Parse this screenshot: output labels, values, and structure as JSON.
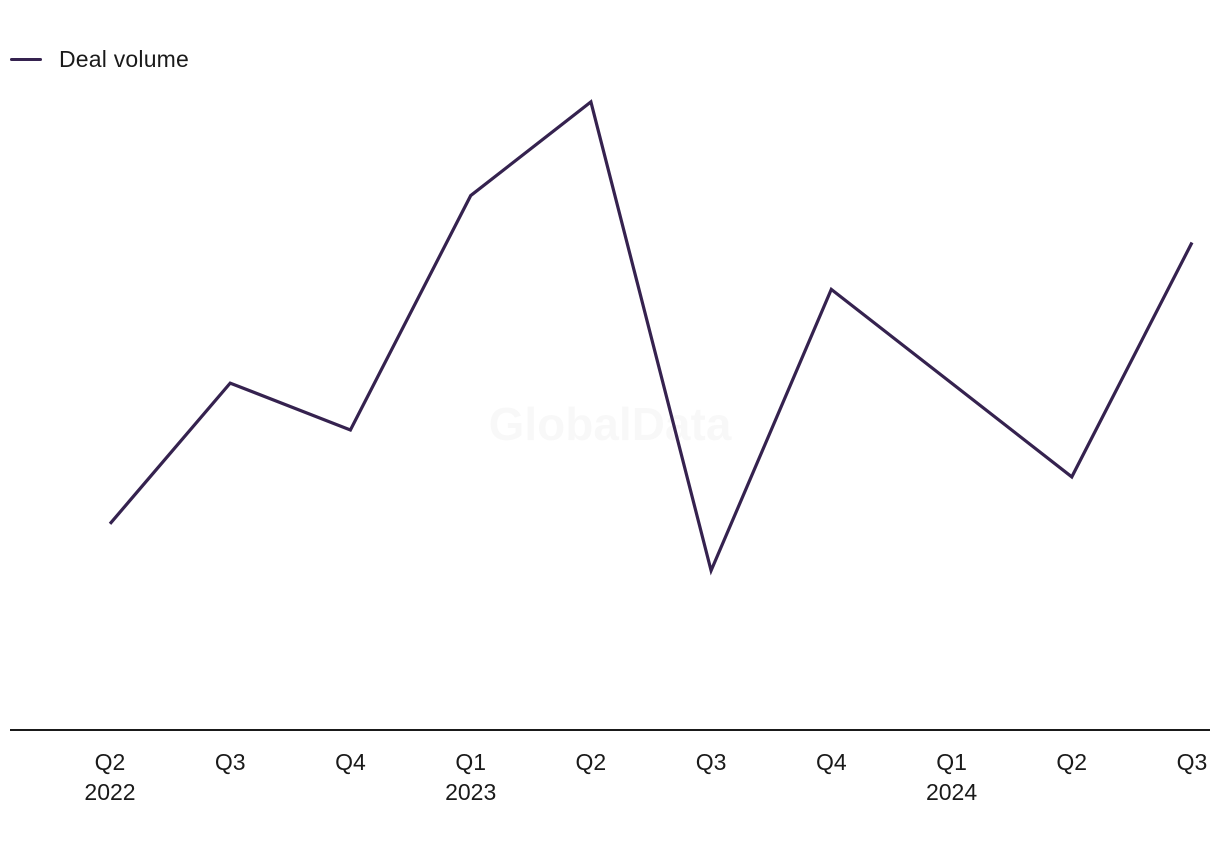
{
  "legend": {
    "label": "Deal volume"
  },
  "watermark": "GlobalData",
  "colors": {
    "series": "#35224f",
    "axis": "#1a1a1a"
  },
  "chart_data": {
    "type": "line",
    "title": "",
    "xlabel": "",
    "ylabel": "",
    "categories": [
      "Q2 2022",
      "Q3 2022",
      "Q4 2022",
      "Q1 2023",
      "Q2 2023",
      "Q3 2023",
      "Q4 2023",
      "Q1 2024",
      "Q2 2024",
      "Q3 2024"
    ],
    "x_tick_labels": [
      {
        "quarter": "Q2",
        "year": "2022"
      },
      {
        "quarter": "Q3",
        "year": ""
      },
      {
        "quarter": "Q4",
        "year": ""
      },
      {
        "quarter": "Q1",
        "year": "2023"
      },
      {
        "quarter": "Q2",
        "year": ""
      },
      {
        "quarter": "Q3",
        "year": ""
      },
      {
        "quarter": "Q4",
        "year": ""
      },
      {
        "quarter": "Q1",
        "year": "2024"
      },
      {
        "quarter": "Q2",
        "year": ""
      },
      {
        "quarter": "Q3",
        "year": ""
      }
    ],
    "series": [
      {
        "name": "Deal volume",
        "values": [
          35,
          50,
          45,
          70,
          80,
          30,
          60,
          50,
          40,
          65
        ]
      }
    ],
    "ylim": [
      5,
      85
    ],
    "y_axis_visible": false,
    "grid": false,
    "legend_position": "top-left"
  }
}
